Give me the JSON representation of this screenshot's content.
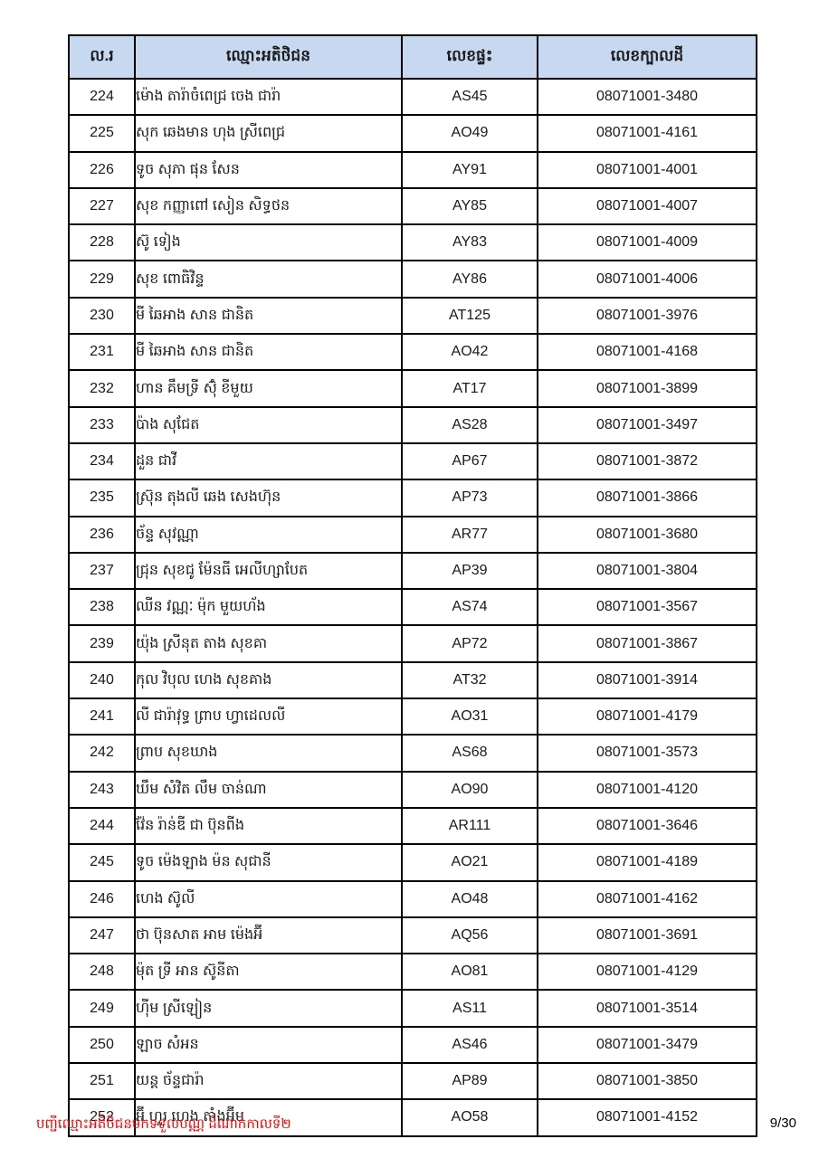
{
  "table": {
    "headers": {
      "no": "ល.រ",
      "name": "ឈ្មោះអតិថិជន",
      "house": "លេខផ្ទះ",
      "parcel": "លេខក្បាលដី"
    },
    "rows": [
      {
        "no": "224",
        "name": "ម៉ោង តារ៉ាចំពេជ្រ  ចេង ជារ៉ា",
        "house": "AS45",
        "parcel": "08071001-3480"
      },
      {
        "no": "225",
        "name": "សុក ឆេងមាន  ហុង ស្រីពេជ្រ",
        "house": "AO49",
        "parcel": "08071001-4161"
      },
      {
        "no": "226",
        "name": "ទូច សុភា  ផុន សែន",
        "house": "AY91",
        "parcel": "08071001-4001"
      },
      {
        "no": "227",
        "name": "សុខ កញ្ញាពៅ  សៀន សិទ្ធថន",
        "house": "AY85",
        "parcel": "08071001-4007"
      },
      {
        "no": "228",
        "name": "ស៊ូ ទៀង",
        "house": "AY83",
        "parcel": "08071001-4009"
      },
      {
        "no": "229",
        "name": "សុខ ពោធិវិន្ទ",
        "house": "AY86",
        "parcel": "08071001-4006"
      },
      {
        "no": "230",
        "name": "មី ឆៃអាង  សាន ជានិត",
        "house": "AT125",
        "parcel": "08071001-3976"
      },
      {
        "no": "231",
        "name": "មី ឆៃអាង  សាន ជានិត",
        "house": "AO42",
        "parcel": "08071001-4168"
      },
      {
        "no": "232",
        "name": "ហាន គឹមទ្រី  ស៊ុំ ខីមួយ",
        "house": "AT17",
        "parcel": "08071001-3899"
      },
      {
        "no": "233",
        "name": "ប៉ាង សុជែត",
        "house": "AS28",
        "parcel": "08071001-3497"
      },
      {
        "no": "234",
        "name": "ដួន ជាវី",
        "house": "AP67",
        "parcel": "08071001-3872"
      },
      {
        "no": "235",
        "name": "ស្រ៊ុន តុងលី  ឆេង សេងហ៊ុន",
        "house": "AP73",
        "parcel": "08071001-3866"
      },
      {
        "no": "236",
        "name": "ច័ន្ទ សុវណ្ណា",
        "house": "AR77",
        "parcel": "08071001-3680"
      },
      {
        "no": "237",
        "name": "ជ្រុន សុខជូ  ម៉ែនធី អេលីហ្សាបែត",
        "house": "AP39",
        "parcel": "08071001-3804"
      },
      {
        "no": "238",
        "name": "ឈីន វណ្ណៈ  ម៉ុក មួយហ័ង",
        "house": "AS74",
        "parcel": "08071001-3567"
      },
      {
        "no": "239",
        "name": "យ៉ុង ស្រីនុត  តាង សុខគា",
        "house": "AP72",
        "parcel": "08071001-3867"
      },
      {
        "no": "240",
        "name": "កុល វិបុល  ហេង សុខគាង",
        "house": "AT32",
        "parcel": "08071001-3914"
      },
      {
        "no": "241",
        "name": "លី ជារ៉ាវុទ្ធ  ព្រាប ហ្វាដេលលី",
        "house": "AO31",
        "parcel": "08071001-4179"
      },
      {
        "no": "242",
        "name": "ព្រាប សុខឃាង",
        "house": "AS68",
        "parcel": "08071001-3573"
      },
      {
        "no": "243",
        "name": "ឃឹម សំវិត  លឹម ចាន់ណា",
        "house": "AO90",
        "parcel": "08071001-4120"
      },
      {
        "no": "244",
        "name": "វ៉ែន រ៉ាន់ឌី  ជា ប៊ុនពីង",
        "house": "AR111",
        "parcel": "08071001-3646"
      },
      {
        "no": "245",
        "name": "ទូច ម៉េងឡាង  ម៉ន សុជានី",
        "house": "AO21",
        "parcel": "08071001-4189"
      },
      {
        "no": "246",
        "name": "ហេង ស៊ូលី",
        "house": "AO48",
        "parcel": "08071001-4162"
      },
      {
        "no": "247",
        "name": "ថា ប៊ុនសាត  អាម ម៉េងអ៊ី",
        "house": "AQ56",
        "parcel": "08071001-3691"
      },
      {
        "no": "248",
        "name": "ម៉ុត ទ្រី  អាន ស៊ូនីតា",
        "house": "AO81",
        "parcel": "08071001-4129"
      },
      {
        "no": "249",
        "name": "ហ៊ីម ស្រីឡៀន",
        "house": "AS11",
        "parcel": "08071001-3514"
      },
      {
        "no": "250",
        "name": "ឡាច សំអន",
        "house": "AS46",
        "parcel": "08071001-3479"
      },
      {
        "no": "251",
        "name": "យន្ត ច័ន្ទជារ៉ា",
        "house": "AP89",
        "parcel": "08071001-3850"
      },
      {
        "no": "252",
        "name": "អ៊ី ហួរ  ហេង តាំងអ៊ីម",
        "house": "AO58",
        "parcel": "08071001-4152"
      }
    ]
  },
  "footer": {
    "note": "បញ្ជីឈ្មោះអតិថិជនមកទទួលបណ្ណ ដំណាក់កាលទី២",
    "page": "9/30"
  },
  "colors": {
    "header_bg": "#c6d9f0",
    "border": "#000000",
    "footer_red": "#ff0000"
  }
}
